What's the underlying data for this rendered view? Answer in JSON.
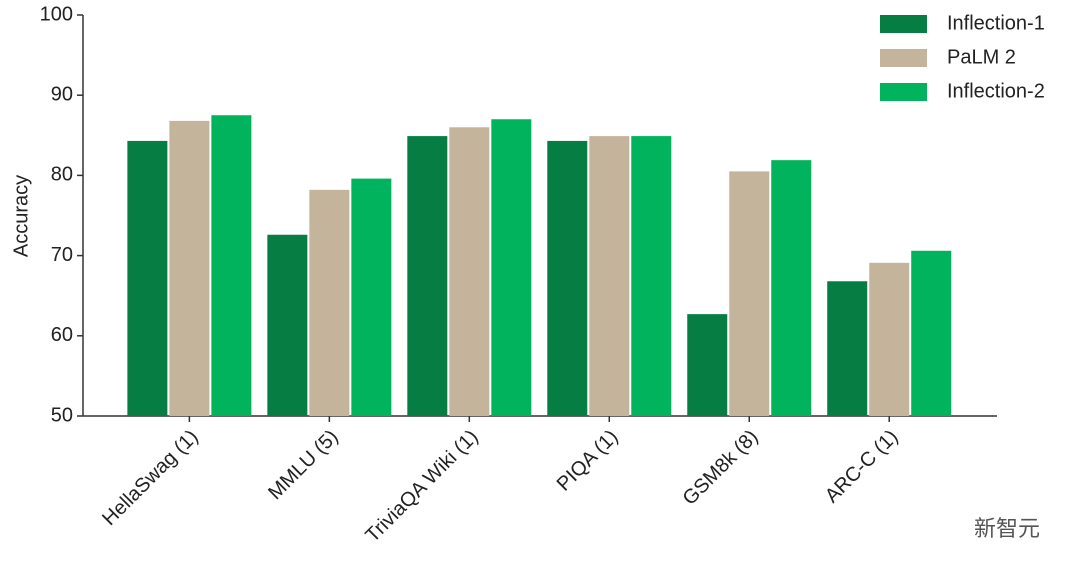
{
  "chart_data": {
    "type": "bar",
    "ylabel": "Accuracy",
    "categories": [
      "HellaSwag (1)",
      "MMLU (5)",
      "TriviaQA Wiki (1)",
      "PIQA (1)",
      "GSM8k (8)",
      "ARC-C (1)"
    ],
    "series": [
      {
        "name": "Inflection-1",
        "color": "#057d43",
        "values": [
          84.3,
          72.6,
          84.9,
          84.3,
          62.7,
          66.8
        ]
      },
      {
        "name": "PaLM 2",
        "color": "#c4b49c",
        "values": [
          86.8,
          78.2,
          86.0,
          84.9,
          80.5,
          69.1
        ]
      },
      {
        "name": "Inflection-2",
        "color": "#00b35c",
        "values": [
          87.5,
          79.6,
          87.0,
          84.9,
          81.9,
          70.6
        ]
      }
    ],
    "ylim": [
      50,
      100
    ],
    "yticks": [
      50,
      60,
      70,
      80,
      90,
      100
    ],
    "legend": "top-right",
    "watermark": "新智元"
  }
}
